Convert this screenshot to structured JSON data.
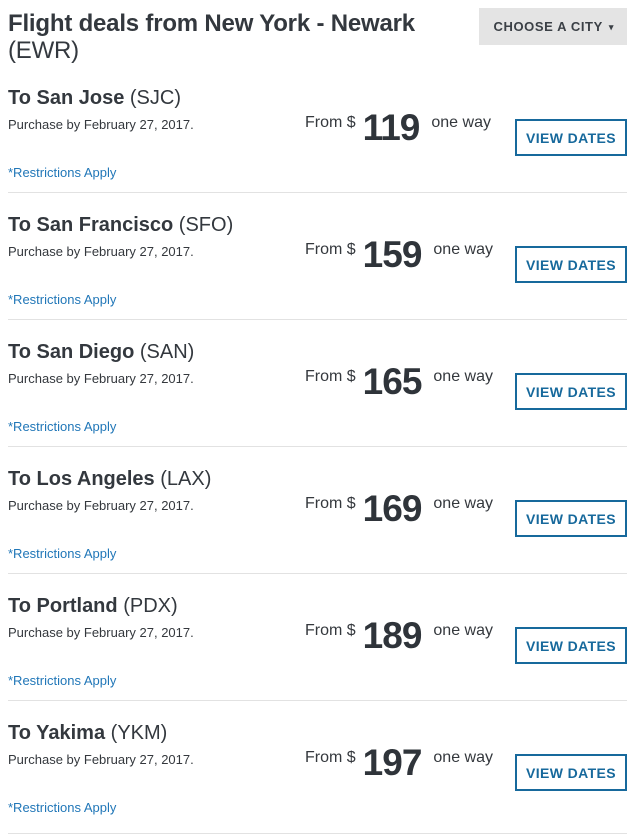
{
  "header": {
    "title_main": "Flight deals from New York - Newark",
    "title_code": "(EWR)",
    "choose_city_label": "CHOOSE A CITY",
    "chevron_icon": "▾"
  },
  "labels": {
    "from": "From $",
    "one_way": "one way",
    "view_dates": "VIEW DATES",
    "restrictions": "*Restrictions Apply"
  },
  "colors": {
    "text_dark": "#33383e",
    "link_blue": "#2177b8",
    "button_blue": "#17699c",
    "choose_city_bg": "#e4e4e4",
    "divider": "#e2e2e2"
  },
  "deals": [
    {
      "city": "To San Jose",
      "code": "(SJC)",
      "purchase_by": "Purchase by February 27, 2017.",
      "price": "119"
    },
    {
      "city": "To San Francisco",
      "code": "(SFO)",
      "purchase_by": "Purchase by February 27, 2017.",
      "price": "159"
    },
    {
      "city": "To San Diego",
      "code": "(SAN)",
      "purchase_by": "Purchase by February 27, 2017.",
      "price": "165"
    },
    {
      "city": "To Los Angeles",
      "code": "(LAX)",
      "purchase_by": "Purchase by February 27, 2017.",
      "price": "169"
    },
    {
      "city": "To Portland",
      "code": "(PDX)",
      "purchase_by": "Purchase by February 27, 2017.",
      "price": "189"
    },
    {
      "city": "To Yakima",
      "code": "(YKM)",
      "purchase_by": "Purchase by February 27, 2017.",
      "price": "197"
    }
  ]
}
